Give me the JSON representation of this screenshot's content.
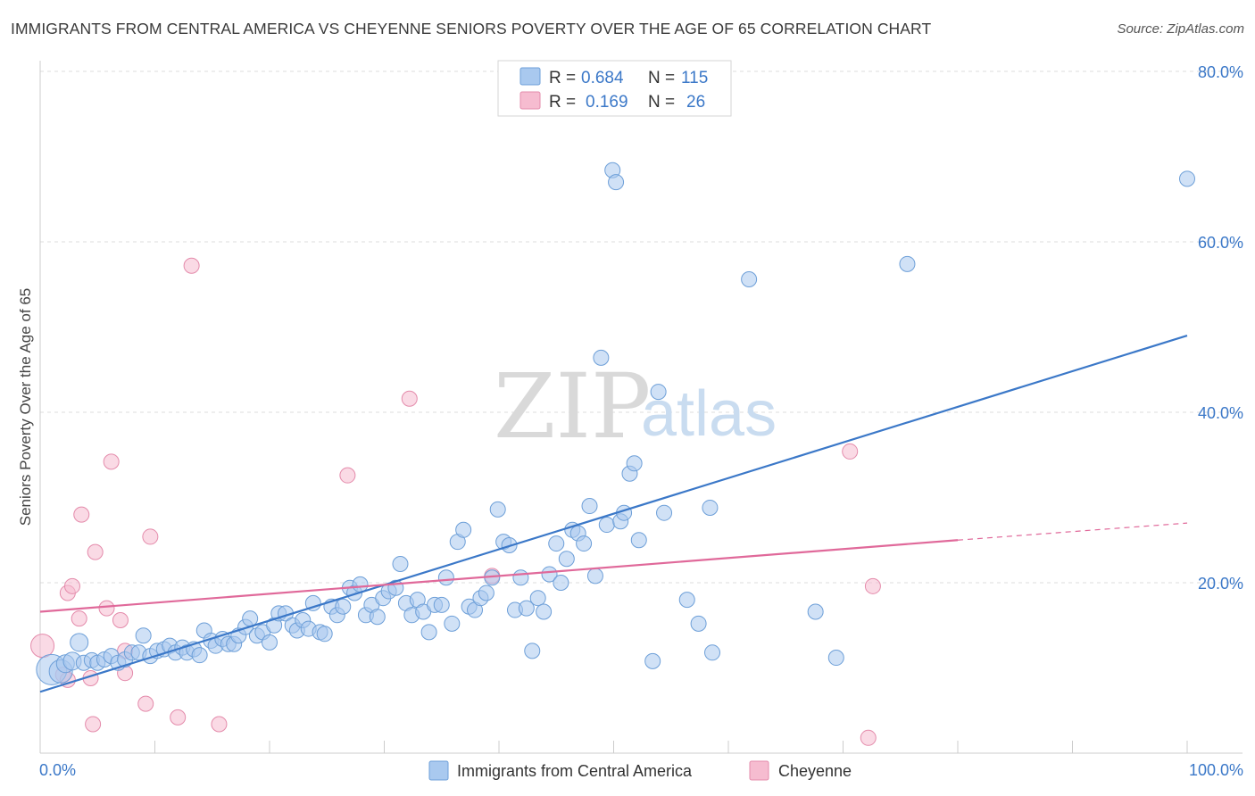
{
  "title": "IMMIGRANTS FROM CENTRAL AMERICA VS CHEYENNE SENIORS POVERTY OVER THE AGE OF 65 CORRELATION CHART",
  "source": "Source: ZipAtlas.com",
  "watermark": {
    "zip": "ZIP",
    "atlas": "atlas"
  },
  "colors": {
    "blue": "#3b78c8",
    "blue_fill": "#a9c9ef",
    "pink": "#e0699a",
    "pink_fill": "#f6bcd0",
    "grid": "#dddddd"
  },
  "legend": {
    "rows": [
      {
        "r_label": "R =",
        "r_value": "0.684",
        "n_label": "N =",
        "n_value": "115"
      },
      {
        "r_label": "R =",
        "r_value": "0.169",
        "n_label": "N =",
        "n_value": "26"
      }
    ]
  },
  "chart_data": {
    "type": "scatter",
    "ylabel": "Seniors Poverty Over the Age of 65",
    "xlim": [
      0,
      100
    ],
    "ylim": [
      0,
      80
    ],
    "x_tick_labels": [
      "0.0%",
      "100.0%"
    ],
    "y_ticks": [
      20,
      40,
      60,
      80
    ],
    "y_tick_labels": [
      "20.0%",
      "40.0%",
      "60.0%",
      "80.0%"
    ],
    "grid": true,
    "series": [
      {
        "name": "Immigrants from Central America",
        "color": "#3b78c8",
        "trend": {
          "x": [
            0,
            100
          ],
          "y": [
            7.2,
            49.0
          ]
        },
        "points": [
          [
            1.0,
            9.8,
            4
          ],
          [
            1.8,
            9.6,
            3
          ],
          [
            2.2,
            10.5,
            2
          ],
          [
            2.8,
            10.8,
            2
          ],
          [
            3.4,
            13.0,
            2
          ],
          [
            3.8,
            10.6,
            1
          ],
          [
            4.5,
            10.9,
            1
          ],
          [
            5.0,
            10.6,
            1
          ],
          [
            5.6,
            11.0,
            1
          ],
          [
            6.2,
            11.4,
            1
          ],
          [
            6.8,
            10.6,
            1
          ],
          [
            7.4,
            11.0,
            1
          ],
          [
            8.0,
            11.8,
            1
          ],
          [
            8.6,
            11.8,
            1
          ],
          [
            9.0,
            13.8,
            1
          ],
          [
            9.6,
            11.4,
            1
          ],
          [
            10.2,
            12.0,
            1
          ],
          [
            10.8,
            12.2,
            1
          ],
          [
            11.3,
            12.6,
            1
          ],
          [
            11.8,
            11.8,
            1
          ],
          [
            12.4,
            12.4,
            1
          ],
          [
            12.8,
            11.8,
            1
          ],
          [
            13.4,
            12.2,
            1
          ],
          [
            13.9,
            11.5,
            1
          ],
          [
            14.3,
            14.4,
            1
          ],
          [
            14.9,
            13.2,
            1
          ],
          [
            15.3,
            12.6,
            1
          ],
          [
            15.9,
            13.4,
            1
          ],
          [
            16.4,
            12.8,
            1
          ],
          [
            16.9,
            12.8,
            1
          ],
          [
            17.3,
            13.8,
            1
          ],
          [
            17.9,
            14.8,
            1
          ],
          [
            18.3,
            15.8,
            1
          ],
          [
            18.9,
            13.8,
            1
          ],
          [
            19.4,
            14.2,
            1
          ],
          [
            20.0,
            13.0,
            1
          ],
          [
            20.4,
            15.0,
            1
          ],
          [
            20.8,
            16.4,
            1
          ],
          [
            21.4,
            16.4,
            1
          ],
          [
            22.0,
            15.0,
            1
          ],
          [
            22.4,
            14.4,
            1
          ],
          [
            22.9,
            15.6,
            1
          ],
          [
            23.4,
            14.6,
            1
          ],
          [
            23.8,
            17.6,
            1
          ],
          [
            24.4,
            14.2,
            1
          ],
          [
            24.8,
            14.0,
            1
          ],
          [
            25.4,
            17.2,
            1
          ],
          [
            25.9,
            16.2,
            1
          ],
          [
            26.4,
            17.2,
            1
          ],
          [
            27.0,
            19.4,
            1
          ],
          [
            27.4,
            18.8,
            1
          ],
          [
            27.9,
            19.8,
            1
          ],
          [
            28.4,
            16.2,
            1
          ],
          [
            28.9,
            17.4,
            1
          ],
          [
            29.4,
            16.0,
            1
          ],
          [
            29.9,
            18.2,
            1
          ],
          [
            30.4,
            19.0,
            1
          ],
          [
            31.0,
            19.4,
            1
          ],
          [
            31.4,
            22.2,
            1
          ],
          [
            31.9,
            17.6,
            1
          ],
          [
            32.4,
            16.2,
            1
          ],
          [
            32.9,
            18.0,
            1
          ],
          [
            33.4,
            16.6,
            1
          ],
          [
            33.9,
            14.2,
            1
          ],
          [
            34.4,
            17.4,
            1
          ],
          [
            35.0,
            17.4,
            1
          ],
          [
            35.4,
            20.6,
            1
          ],
          [
            35.9,
            15.2,
            1
          ],
          [
            36.4,
            24.8,
            1
          ],
          [
            36.9,
            26.2,
            1
          ],
          [
            37.4,
            17.2,
            1
          ],
          [
            37.9,
            16.8,
            1
          ],
          [
            38.4,
            18.2,
            1
          ],
          [
            38.9,
            18.8,
            1
          ],
          [
            39.4,
            20.6,
            1
          ],
          [
            39.9,
            28.6,
            1
          ],
          [
            40.4,
            24.8,
            1
          ],
          [
            40.9,
            24.4,
            1
          ],
          [
            41.4,
            16.8,
            1
          ],
          [
            41.9,
            20.6,
            1
          ],
          [
            42.4,
            17.0,
            1
          ],
          [
            42.9,
            12.0,
            1
          ],
          [
            43.4,
            18.2,
            1
          ],
          [
            43.9,
            16.6,
            1
          ],
          [
            44.4,
            21.0,
            1
          ],
          [
            45.0,
            24.6,
            1
          ],
          [
            45.4,
            20.0,
            1
          ],
          [
            45.9,
            22.8,
            1
          ],
          [
            46.4,
            26.2,
            1
          ],
          [
            46.9,
            25.8,
            1
          ],
          [
            47.4,
            24.6,
            1
          ],
          [
            47.9,
            29.0,
            1
          ],
          [
            48.4,
            20.8,
            1
          ],
          [
            48.9,
            46.4,
            1
          ],
          [
            49.4,
            26.8,
            1
          ],
          [
            49.9,
            68.4,
            1
          ],
          [
            50.2,
            67.0,
            1
          ],
          [
            50.6,
            27.2,
            1
          ],
          [
            50.9,
            28.2,
            1
          ],
          [
            51.4,
            32.8,
            1
          ],
          [
            51.8,
            34.0,
            1
          ],
          [
            52.2,
            25.0,
            1
          ],
          [
            53.4,
            10.8,
            1
          ],
          [
            53.9,
            42.4,
            1
          ],
          [
            54.4,
            28.2,
            1
          ],
          [
            56.4,
            18.0,
            1
          ],
          [
            57.4,
            15.2,
            1
          ],
          [
            58.4,
            28.8,
            1
          ],
          [
            58.6,
            11.8,
            1
          ],
          [
            61.8,
            55.6,
            1
          ],
          [
            67.6,
            16.6,
            1
          ],
          [
            69.4,
            11.2,
            1
          ],
          [
            75.6,
            57.4,
            1
          ],
          [
            100.0,
            67.4,
            1
          ]
        ]
      },
      {
        "name": "Cheyenne",
        "color": "#e0699a",
        "trend": {
          "x": [
            0,
            80
          ],
          "y": [
            16.6,
            25.0
          ]
        },
        "trend_dashed": {
          "x": [
            80,
            100
          ],
          "y": [
            25.0,
            27.0
          ]
        },
        "points": [
          [
            0.2,
            12.6,
            3
          ],
          [
            2.0,
            9.2,
            1
          ],
          [
            2.4,
            8.6,
            1
          ],
          [
            2.4,
            18.8,
            1
          ],
          [
            2.8,
            19.6,
            1
          ],
          [
            3.4,
            15.8,
            1
          ],
          [
            3.6,
            28.0,
            1
          ],
          [
            4.4,
            8.8,
            1
          ],
          [
            4.6,
            3.4,
            1
          ],
          [
            4.8,
            23.6,
            1
          ],
          [
            5.8,
            17.0,
            1
          ],
          [
            6.2,
            34.2,
            1
          ],
          [
            7.0,
            15.6,
            1
          ],
          [
            7.4,
            12.0,
            1
          ],
          [
            7.4,
            9.4,
            1
          ],
          [
            9.2,
            5.8,
            1
          ],
          [
            9.6,
            25.4,
            1
          ],
          [
            12.0,
            4.2,
            1
          ],
          [
            13.2,
            57.2,
            1
          ],
          [
            15.6,
            3.4,
            1
          ],
          [
            26.8,
            32.6,
            1
          ],
          [
            32.2,
            41.6,
            1
          ],
          [
            39.4,
            20.8,
            1
          ],
          [
            70.6,
            35.4,
            1
          ],
          [
            72.2,
            1.8,
            1
          ],
          [
            72.6,
            19.6,
            1
          ]
        ]
      }
    ]
  },
  "bottom_legend": {
    "items": [
      {
        "label": "Immigrants from Central America"
      },
      {
        "label": "Cheyenne"
      }
    ]
  }
}
